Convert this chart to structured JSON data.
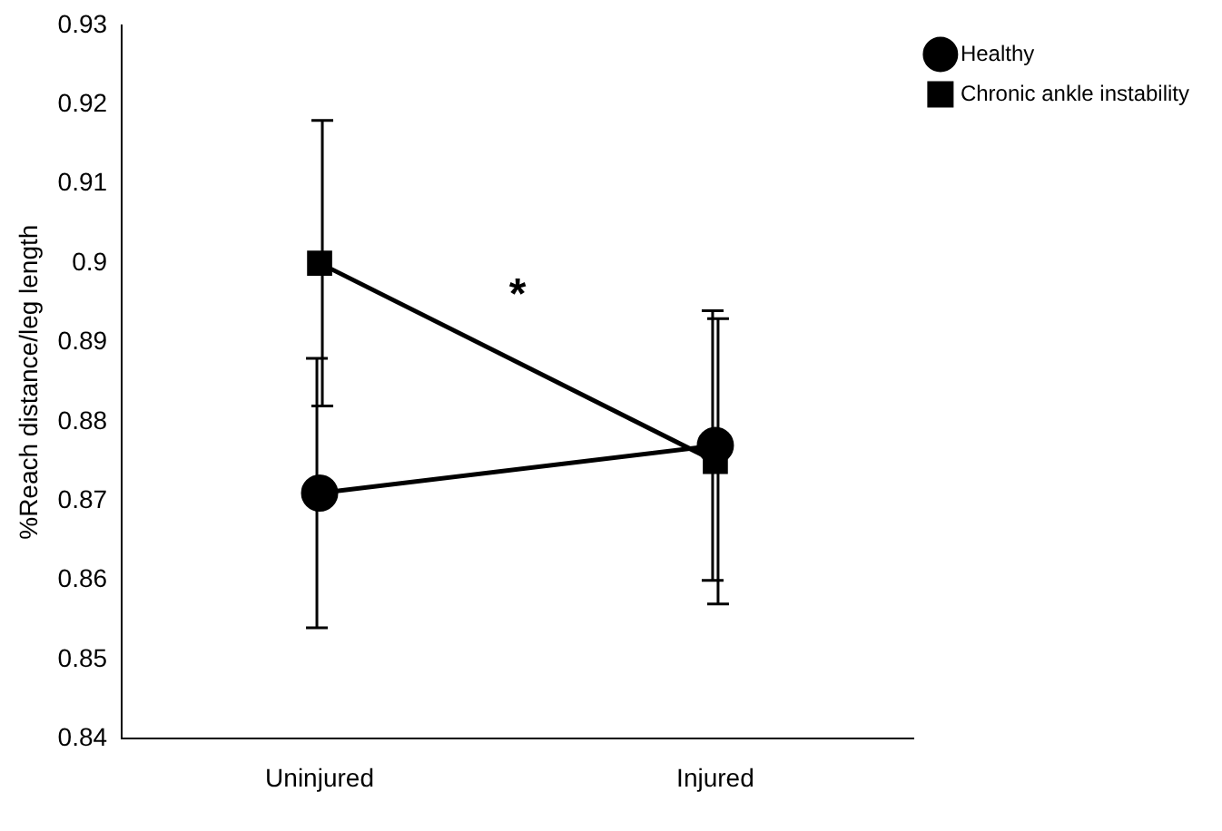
{
  "chart_data": {
    "type": "line",
    "ylabel": "%Reach distance/leg length",
    "categories": [
      "Uninjured",
      "Injured"
    ],
    "series": [
      {
        "name": "Healthy",
        "color": "#000000",
        "marker": "circle",
        "values": [
          0.871,
          0.877
        ],
        "errors": [
          0.017,
          0.017
        ]
      },
      {
        "name": "Chronic ankle instability",
        "color": "#000000",
        "marker": "square",
        "values": [
          0.9,
          0.875
        ],
        "errors": [
          0.018,
          0.018
        ]
      }
    ],
    "ylim": [
      0.84,
      0.93
    ],
    "yticks": [
      0.84,
      0.85,
      0.86,
      0.87,
      0.88,
      0.89,
      0.9,
      0.91,
      0.92,
      0.93
    ],
    "grid": false,
    "legend": "top right",
    "line_style": "solid",
    "annotations": [
      "*"
    ]
  }
}
